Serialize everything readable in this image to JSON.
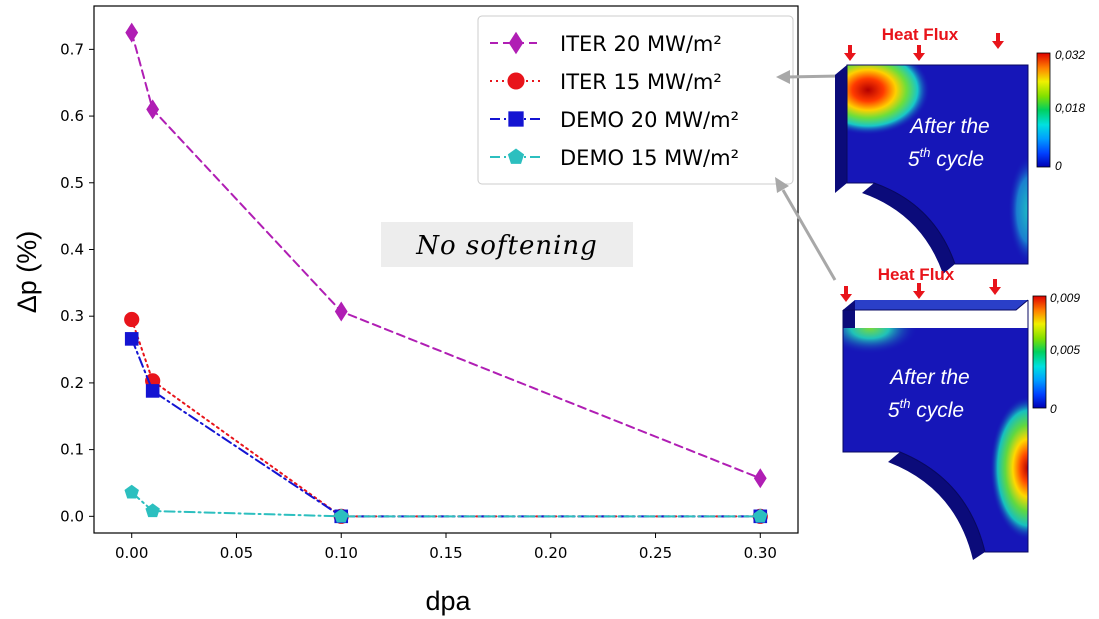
{
  "chart_data": {
    "type": "line",
    "xlabel": "dpa",
    "ylabel": "Δp (%)",
    "xlim": [
      -0.018,
      0.318
    ],
    "ylim": [
      -0.025,
      0.765
    ],
    "xticks": [
      "0.00",
      "0.05",
      "0.10",
      "0.15",
      "0.20",
      "0.25",
      "0.30"
    ],
    "yticks": [
      "0.0",
      "0.1",
      "0.2",
      "0.3",
      "0.4",
      "0.5",
      "0.6",
      "0.7"
    ],
    "grid": false,
    "legend_position": "upper-right",
    "annotation": "No softening",
    "series": [
      {
        "name": "ITER 20 MW/m²",
        "color": "#b01eb4",
        "marker": "diamond",
        "line": "dashed",
        "x": [
          0.0,
          0.01,
          0.1,
          0.3
        ],
        "y": [
          0.725,
          0.61,
          0.307,
          0.057
        ]
      },
      {
        "name": "ITER 15 MW/m²",
        "color": "#e8141b",
        "marker": "circle",
        "line": "dotted",
        "x": [
          0.0,
          0.01,
          0.1,
          0.3
        ],
        "y": [
          0.295,
          0.203,
          0.0,
          0.0
        ]
      },
      {
        "name": "DEMO 20 MW/m²",
        "color": "#1414d2",
        "marker": "square",
        "line": "dashdot",
        "x": [
          0.0,
          0.01,
          0.1,
          0.3
        ],
        "y": [
          0.266,
          0.188,
          0.0,
          0.0
        ]
      },
      {
        "name": "DEMO 15 MW/m²",
        "color": "#2cbfbf",
        "marker": "pentagon",
        "line": "dashdot",
        "x": [
          0.0,
          0.01,
          0.1,
          0.3
        ],
        "y": [
          0.036,
          0.008,
          0.0,
          0.0
        ]
      }
    ]
  },
  "insets": [
    {
      "title": "Heat Flux",
      "caption_line1": "After the",
      "caption_num": "5",
      "caption_sup": "th",
      "caption_rest": " cycle",
      "colorbar_ticks": [
        "0,032",
        "0,018",
        "0"
      ]
    },
    {
      "title": "Heat Flux",
      "caption_line1": "After the",
      "caption_num": "5",
      "caption_sup": "th",
      "caption_rest": " cycle",
      "colorbar_ticks": [
        "0,009",
        "0,005",
        "0"
      ]
    }
  ],
  "colors": {
    "block_face": "#1616b8",
    "block_top": "#2a3fc8",
    "block_side": "#0b0b7a",
    "arrow": "#e8141b",
    "pointer": "#a8a8a8"
  }
}
